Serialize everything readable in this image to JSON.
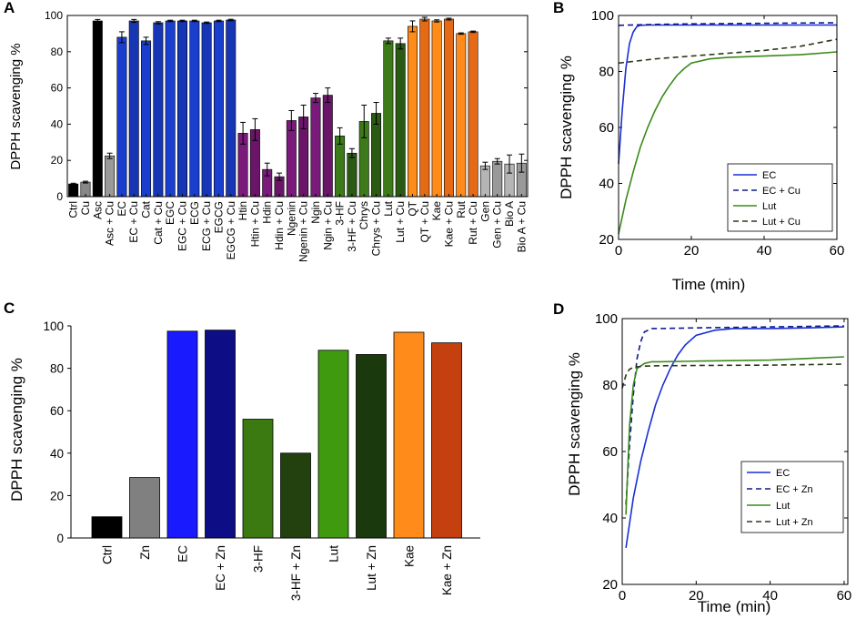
{
  "chart_data": [
    {
      "panel": "A",
      "type": "bar",
      "title": "",
      "xlabel": "",
      "ylabel": "DPPH scavenging %",
      "ylim": [
        0,
        100
      ],
      "yticks": [
        0,
        20,
        40,
        60,
        80,
        100
      ],
      "categories": [
        "Ctrl",
        "Cu",
        "Asc",
        "Asc + Cu",
        "EC",
        "EC + Cu",
        "Cat",
        "Cat + Cu",
        "EGC",
        "EGC + Cu",
        "ECG",
        "ECG + Cu",
        "EGCG",
        "EGCG + Cu",
        "Htin",
        "Htin + Cu",
        "Hdin",
        "Hdin + Cu",
        "Ngenin",
        "Ngenin + Cu",
        "Ngin",
        "Ngin + Cu",
        "3-HF",
        "3-HF + Cu",
        "Chrys",
        "Chrys + Cu",
        "Lut",
        "Lut + Cu",
        "QT",
        "QT + Cu",
        "Kae",
        "Kae + Cu",
        "Rut",
        "Rut + Cu",
        "Gen",
        "Gen + Cu",
        "Bio A",
        "Bio A + Cu"
      ],
      "values": [
        7,
        8,
        97,
        22.5,
        88,
        97,
        86,
        96,
        97,
        97,
        97,
        96,
        97,
        97.5,
        35,
        37,
        15,
        11,
        42,
        44,
        54.5,
        56,
        33.5,
        24,
        41.5,
        46,
        86,
        84.5,
        94,
        98,
        97,
        98,
        90,
        91,
        17,
        19.5,
        18,
        18.5
      ],
      "errors": [
        0.4,
        0.5,
        0.8,
        1.5,
        3,
        0.8,
        2,
        0.6,
        0.4,
        0.4,
        0.4,
        0.4,
        0.4,
        0.4,
        6,
        6,
        3.5,
        2,
        5.5,
        6.5,
        2.5,
        4,
        4.5,
        2.5,
        9,
        6,
        1.5,
        3,
        3,
        1,
        0.6,
        0.5,
        0.4,
        0.4,
        2,
        1.5,
        5,
        5
      ],
      "colors": [
        "#000000",
        "#888888",
        "#000000",
        "#999999",
        "#1a3fcf",
        "#1636b5",
        "#1a3fcf",
        "#1636b5",
        "#1a3fcf",
        "#1636b5",
        "#1a3fcf",
        "#1636b5",
        "#1a3fcf",
        "#1636b5",
        "#7a1a7a",
        "#6a1568",
        "#7a1a7a",
        "#6a1568",
        "#7a1a7a",
        "#6a1568",
        "#7a1a7a",
        "#6a1568",
        "#3c7a1a",
        "#2a5a14",
        "#3c7a1a",
        "#2a5a14",
        "#3c7a1a",
        "#2a5a14",
        "#ff8c1a",
        "#e46a15",
        "#ff8c1a",
        "#e46a15",
        "#ff8c1a",
        "#e46a15",
        "#b5b5b5",
        "#999999",
        "#b5b5b5",
        "#999999"
      ]
    },
    {
      "panel": "B",
      "type": "line",
      "title": "",
      "xlabel": "Time (min)",
      "ylabel": "DPPH scavenging %",
      "xlim": [
        0,
        60
      ],
      "ylim": [
        20,
        100
      ],
      "xticks": [
        0,
        20,
        40,
        60
      ],
      "yticks": [
        20,
        40,
        60,
        80,
        100
      ],
      "legend_position": "bottom-right",
      "series": [
        {
          "name": "EC",
          "color": "#1a2fd6",
          "dash": "solid",
          "x": [
            0,
            1,
            2,
            3,
            4,
            5,
            6,
            8,
            10,
            20,
            40,
            60
          ],
          "y": [
            47,
            66,
            81,
            90,
            94,
            96,
            96.5,
            96.6,
            96.6,
            96.6,
            96.6,
            96.6
          ]
        },
        {
          "name": "EC + Cu",
          "color": "#0f1a8c",
          "dash": "dashed",
          "x": [
            0,
            10,
            20,
            30,
            40,
            50,
            60
          ],
          "y": [
            96.5,
            96.8,
            97,
            97.1,
            97.2,
            97.3,
            97.4
          ]
        },
        {
          "name": "Lut",
          "color": "#3a8a1a",
          "dash": "solid",
          "x": [
            0,
            2,
            4,
            6,
            8,
            10,
            12,
            14,
            16,
            18,
            20,
            25,
            30,
            40,
            50,
            60
          ],
          "y": [
            22,
            34,
            44,
            53,
            60,
            66,
            71,
            75,
            78.5,
            81,
            83,
            84.5,
            85,
            85.5,
            86,
            87
          ]
        },
        {
          "name": "Lut + Cu",
          "color": "#2a3a1a",
          "dash": "dashed",
          "x": [
            0,
            10,
            20,
            30,
            40,
            50,
            60
          ],
          "y": [
            83,
            84.5,
            85.5,
            86.5,
            87.5,
            89,
            91.5
          ]
        }
      ]
    },
    {
      "panel": "C",
      "type": "bar",
      "title": "",
      "xlabel": "",
      "ylabel": "DPPH scavenging %",
      "ylim": [
        0,
        100
      ],
      "yticks": [
        0,
        20,
        40,
        60,
        80,
        100
      ],
      "categories": [
        "Ctrl",
        "Zn",
        "EC",
        "EC + Zn",
        "3-HF",
        "3-HF + Zn",
        "Lut",
        "Lut + Zn",
        "Kae",
        "Kae + Zn"
      ],
      "values": [
        10,
        28.5,
        97.5,
        98,
        56,
        40,
        88.5,
        86.5,
        97,
        92
      ],
      "colors": [
        "#000000",
        "#808080",
        "#1a1aff",
        "#0d0d85",
        "#3a7a10",
        "#23400f",
        "#409a10",
        "#1a3a0d",
        "#ff8c1a",
        "#c4400e"
      ]
    },
    {
      "panel": "D",
      "type": "line",
      "title": "",
      "xlabel": "Time (min)",
      "ylabel": "DPPH scavenging %",
      "xlim": [
        0,
        61
      ],
      "ylim": [
        20,
        100
      ],
      "xticks": [
        0,
        20,
        40,
        60
      ],
      "yticks": [
        20,
        40,
        60,
        80,
        100
      ],
      "legend_position": "bottom-right",
      "series": [
        {
          "name": "EC",
          "color": "#1a2fd6",
          "dash": "solid",
          "x": [
            1,
            3,
            5,
            7,
            9,
            11,
            13,
            15,
            17,
            20,
            25,
            30,
            40,
            50,
            60
          ],
          "y": [
            31,
            46,
            57,
            66,
            74,
            80,
            85,
            89,
            92,
            95,
            96.5,
            97,
            97,
            97.2,
            97.5
          ]
        },
        {
          "name": "EC + Zn",
          "color": "#0f1a8c",
          "dash": "dashed",
          "x": [
            1,
            2,
            3,
            4,
            5,
            6,
            8,
            10,
            20,
            40,
            60
          ],
          "y": [
            44,
            62,
            77,
            88,
            93,
            96,
            97,
            97,
            97.2,
            97.5,
            97.8
          ]
        },
        {
          "name": "Lut",
          "color": "#3a8a1a",
          "dash": "solid",
          "x": [
            1,
            1.5,
            2,
            3,
            4,
            6,
            8,
            10,
            20,
            40,
            60
          ],
          "y": [
            41,
            55,
            68,
            80,
            85,
            86.5,
            87,
            87,
            87.2,
            87.5,
            88.5
          ]
        },
        {
          "name": "Lut + Zn",
          "color": "#2a3a1a",
          "dash": "dashed",
          "x": [
            0,
            0.5,
            1,
            1.5,
            2,
            3,
            4,
            6,
            10,
            20,
            40,
            60
          ],
          "y": [
            79,
            81,
            83,
            84,
            84.8,
            85.3,
            85.5,
            85.7,
            85.8,
            85.9,
            86,
            86.3
          ]
        }
      ]
    }
  ],
  "panel_labels": {
    "a": "A",
    "b": "B",
    "c": "C",
    "d": "D"
  }
}
